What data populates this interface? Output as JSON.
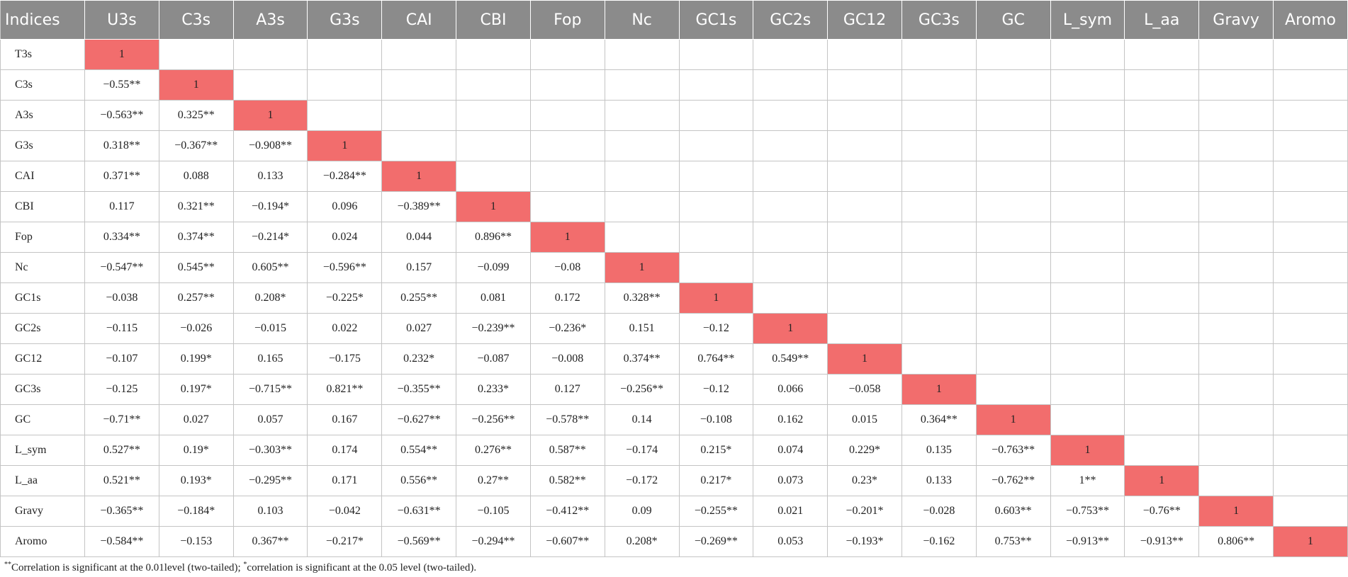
{
  "table": {
    "header": [
      "Indices",
      "U3s",
      "C3s",
      "A3s",
      "G3s",
      "CAI",
      "CBI",
      "Fop",
      "Nc",
      "GC1s",
      "GC2s",
      "GC12",
      "GC3s",
      "GC",
      "L_sym",
      "L_aa",
      "Gravy",
      "Aromo"
    ],
    "rows": [
      {
        "label": "T3s",
        "values": [
          "1"
        ]
      },
      {
        "label": "C3s",
        "values": [
          "−0.55**",
          "1"
        ]
      },
      {
        "label": "A3s",
        "values": [
          "−0.563**",
          "0.325**",
          "1"
        ]
      },
      {
        "label": "G3s",
        "values": [
          "0.318**",
          "−0.367**",
          "−0.908**",
          "1"
        ]
      },
      {
        "label": "CAI",
        "values": [
          "0.371**",
          "0.088",
          "0.133",
          "−0.284**",
          "1"
        ]
      },
      {
        "label": "CBI",
        "values": [
          "0.117",
          "0.321**",
          "−0.194*",
          "0.096",
          "−0.389**",
          "1"
        ]
      },
      {
        "label": "Fop",
        "values": [
          "0.334**",
          "0.374**",
          "−0.214*",
          "0.024",
          "0.044",
          "0.896**",
          "1"
        ]
      },
      {
        "label": "Nc",
        "values": [
          "−0.547**",
          "0.545**",
          "0.605**",
          "−0.596**",
          "0.157",
          "−0.099",
          "−0.08",
          "1"
        ]
      },
      {
        "label": "GC1s",
        "values": [
          "−0.038",
          "0.257**",
          "0.208*",
          "−0.225*",
          "0.255**",
          "0.081",
          "0.172",
          "0.328**",
          "1"
        ]
      },
      {
        "label": "GC2s",
        "values": [
          "−0.115",
          "−0.026",
          "−0.015",
          "0.022",
          "0.027",
          "−0.239**",
          "−0.236*",
          "0.151",
          "−0.12",
          "1"
        ]
      },
      {
        "label": "GC12",
        "values": [
          "−0.107",
          "0.199*",
          "0.165",
          "−0.175",
          "0.232*",
          "−0.087",
          "−0.008",
          "0.374**",
          "0.764**",
          "0.549**",
          "1"
        ]
      },
      {
        "label": "GC3s",
        "values": [
          "−0.125",
          "0.197*",
          "−0.715**",
          "0.821**",
          "−0.355**",
          "0.233*",
          "0.127",
          "−0.256**",
          "−0.12",
          "0.066",
          "−0.058",
          "1"
        ]
      },
      {
        "label": "GC",
        "values": [
          "−0.71**",
          "0.027",
          "0.057",
          "0.167",
          "−0.627**",
          "−0.256**",
          "−0.578**",
          "0.14",
          "−0.108",
          "0.162",
          "0.015",
          "0.364**",
          "1"
        ]
      },
      {
        "label": "L_sym",
        "values": [
          "0.527**",
          "0.19*",
          "−0.303**",
          "0.174",
          "0.554**",
          "0.276**",
          "0.587**",
          "−0.174",
          "0.215*",
          "0.074",
          "0.229*",
          "0.135",
          "−0.763**",
          "1"
        ]
      },
      {
        "label": "L_aa",
        "values": [
          "0.521**",
          "0.193*",
          "−0.295**",
          "0.171",
          "0.556**",
          "0.27**",
          "0.582**",
          "−0.172",
          "0.217*",
          "0.073",
          "0.23*",
          "0.133",
          "−0.762**",
          "1**",
          "1"
        ]
      },
      {
        "label": "Gravy",
        "values": [
          "−0.365**",
          "−0.184*",
          "0.103",
          "−0.042",
          "−0.631**",
          "−0.105",
          "−0.412**",
          "0.09",
          "−0.255**",
          "0.021",
          "−0.201*",
          "−0.028",
          "0.603**",
          "−0.753**",
          "−0.76**",
          "1"
        ]
      },
      {
        "label": "Aromo",
        "values": [
          "−0.584**",
          "−0.153",
          "0.367**",
          "−0.217*",
          "−0.569**",
          "−0.294**",
          "−0.607**",
          "0.208*",
          "−0.269**",
          "0.053",
          "−0.193*",
          "−0.162",
          "0.753**",
          "−0.913**",
          "−0.913**",
          "0.806**",
          "1"
        ]
      }
    ],
    "note": [
      "**",
      "Correlation is significant at the 0.01level (two-tailed); ",
      "*",
      "correlation is significant at the 0.05 level (two-tailed)."
    ]
  }
}
